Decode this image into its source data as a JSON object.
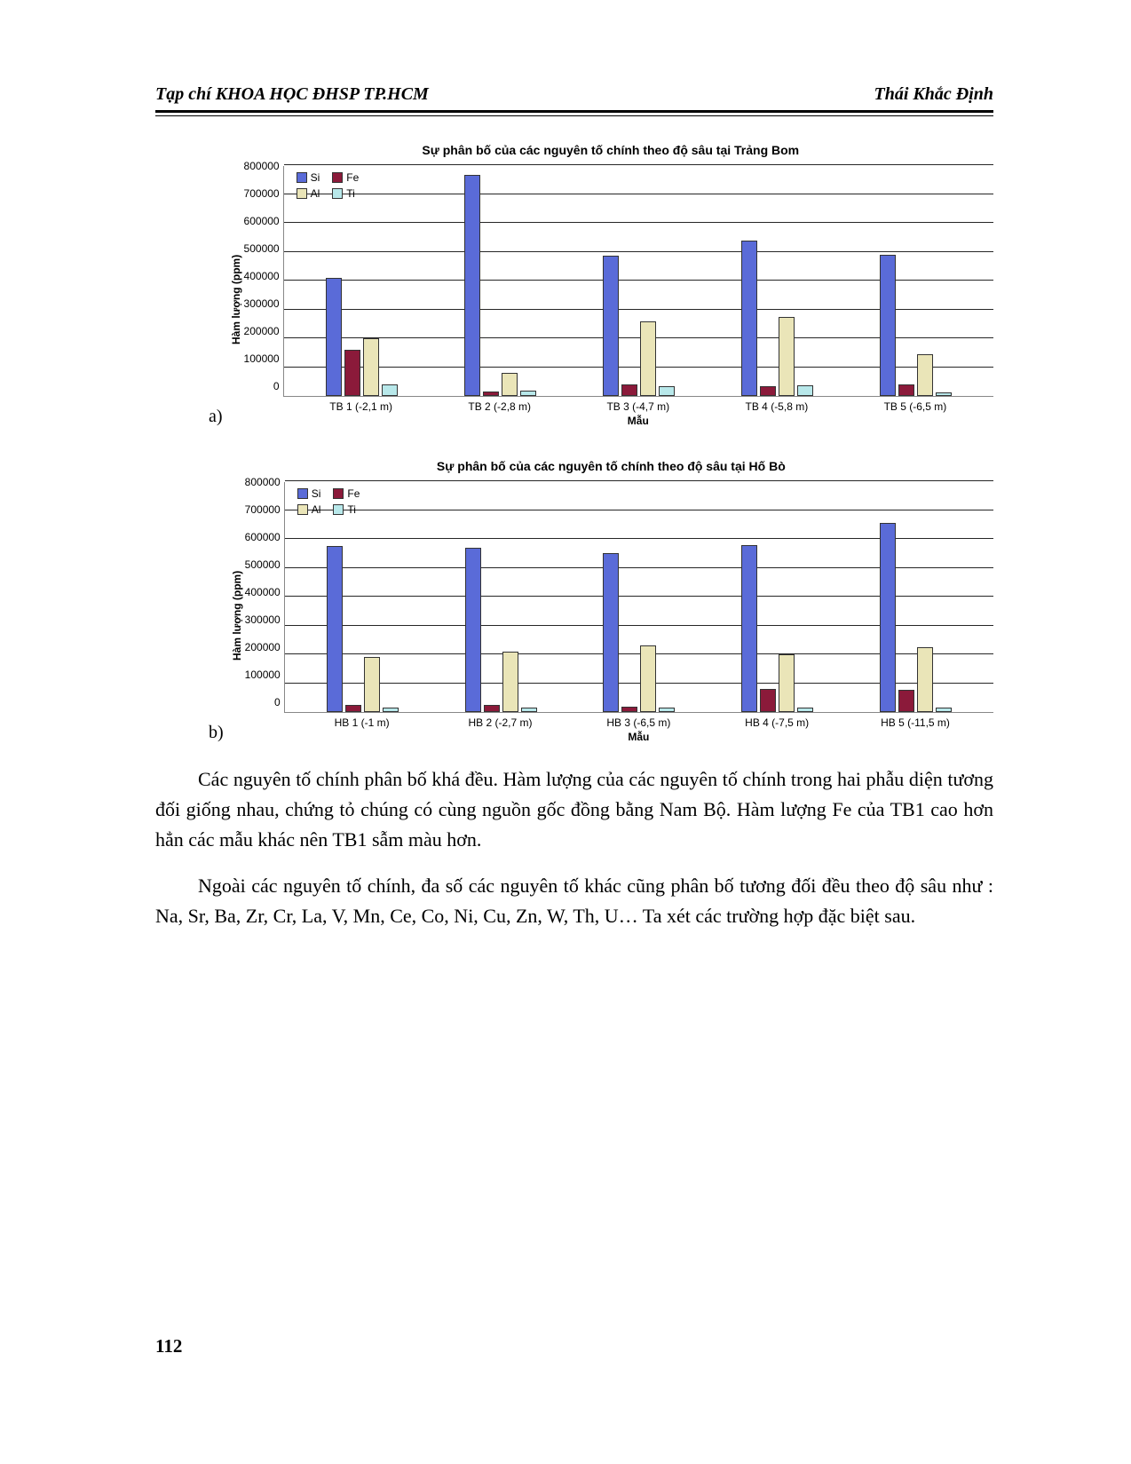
{
  "header": {
    "journal": "Tạp chí KHOA HỌC ĐHSP TP.HCM",
    "author": "Thái Khắc Định"
  },
  "chart_a": {
    "label": "a)",
    "title": "Sự phân bố của các nguyên tố chính theo độ sâu tại Trảng Bom",
    "ylabel": "Hàm lượng (ppm)",
    "xlabel": "Mẫu",
    "ylim": [
      0,
      800000
    ],
    "ytick_step": 100000,
    "yticks": [
      "800000",
      "700000",
      "600000",
      "500000",
      "400000",
      "300000",
      "200000",
      "100000",
      "0"
    ],
    "series": [
      "Si",
      "Fe",
      "Al",
      "Ti"
    ],
    "colors": {
      "Si": "#5a6bd8",
      "Fe": "#8b1a3a",
      "Al": "#eae5b8",
      "Ti": "#b8e8ea"
    },
    "categories": [
      "TB 1 (-2,1 m)",
      "TB 2 (-2,8 m)",
      "TB 3 (-4,7 m)",
      "TB 4 (-5,8 m)",
      "TB 5 (-6,5 m)"
    ],
    "data": {
      "TB 1 (-2,1 m)": {
        "Si": 410000,
        "Fe": 160000,
        "Al": 200000,
        "Ti": 40000
      },
      "TB 2 (-2,8 m)": {
        "Si": 765000,
        "Fe": 15000,
        "Al": 80000,
        "Ti": 18000
      },
      "TB 3 (-4,7 m)": {
        "Si": 485000,
        "Fe": 40000,
        "Al": 260000,
        "Ti": 35000
      },
      "TB 4 (-5,8 m)": {
        "Si": 540000,
        "Fe": 35000,
        "Al": 275000,
        "Ti": 38000
      },
      "TB 5 (-6,5 m)": {
        "Si": 490000,
        "Fe": 40000,
        "Al": 145000,
        "Ti": 12000
      }
    }
  },
  "chart_b": {
    "label": "b)",
    "title": "Sự phân bố của các nguyên tố chính theo độ sâu tại Hố Bò",
    "ylabel": "Hàm lượng (ppm)",
    "xlabel": "Mẫu",
    "ylim": [
      0,
      800000
    ],
    "ytick_step": 100000,
    "yticks": [
      "800000",
      "700000",
      "600000",
      "500000",
      "400000",
      "300000",
      "200000",
      "100000",
      "0"
    ],
    "series": [
      "Si",
      "Fe",
      "Al",
      "Ti"
    ],
    "colors": {
      "Si": "#5a6bd8",
      "Fe": "#8b1a3a",
      "Al": "#eae5b8",
      "Ti": "#b8e8ea"
    },
    "categories": [
      "HB 1 (-1 m)",
      "HB 2 (-2,7 m)",
      "HB 3 (-6,5 m)",
      "HB 4 (-7,5 m)",
      "HB 5 (-11,5 m)"
    ],
    "data": {
      "HB 1 (-1 m)": {
        "Si": 575000,
        "Fe": 25000,
        "Al": 190000,
        "Ti": 15000
      },
      "HB 2 (-2,7 m)": {
        "Si": 570000,
        "Fe": 25000,
        "Al": 210000,
        "Ti": 15000
      },
      "HB 3 (-6,5 m)": {
        "Si": 550000,
        "Fe": 18000,
        "Al": 230000,
        "Ti": 15000
      },
      "HB 4 (-7,5 m)": {
        "Si": 580000,
        "Fe": 80000,
        "Al": 200000,
        "Ti": 15000
      },
      "HB 5 (-11,5 m)": {
        "Si": 655000,
        "Fe": 78000,
        "Al": 225000,
        "Ti": 15000
      }
    }
  },
  "paragraphs": [
    "Các nguyên tố chính phân bố khá đều. Hàm lượng của các nguyên tố chính trong hai phẫu diện tương đối giống nhau, chứng tỏ chúng có cùng nguồn gốc đồng bằng Nam Bộ. Hàm lượng Fe của TB1 cao hơn hẳn các mẫu khác nên TB1 sẫm màu hơn.",
    "Ngoài các nguyên tố chính, đa số các nguyên tố khác cũng phân bố tương đối đều theo độ sâu như : Na, Sr, Ba, Zr, Cr, La, V, Mn, Ce, Co, Ni, Cu, Zn, W, Th, U… Ta xét các trường hợp đặc biệt sau."
  ],
  "page_number": "112"
}
